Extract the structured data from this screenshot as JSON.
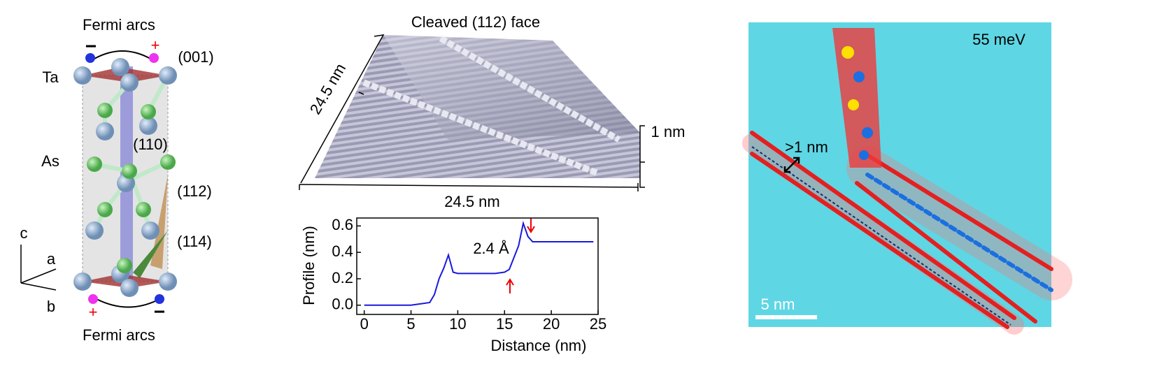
{
  "panel_a": {
    "top_label": "Fermi arcs",
    "bottom_label": "Fermi arcs",
    "planes": [
      "(001)",
      "(110)",
      "(112)",
      "(114)"
    ],
    "atoms": [
      "Ta",
      "As"
    ],
    "axes": [
      "c",
      "a",
      "b"
    ],
    "signs": [
      "−",
      "+",
      "+",
      "−"
    ]
  },
  "panel_b": {
    "title": "Cleaved (112) face",
    "side_label": "24.5 nm",
    "front_label": "24.5 nm",
    "height_label": "1 nm"
  },
  "chart_data": {
    "type": "line",
    "x": [
      0,
      1,
      2,
      3,
      4,
      5,
      6,
      7,
      7.5,
      8,
      8.5,
      9,
      9.5,
      10,
      11,
      12,
      13,
      14,
      15,
      15.5,
      16,
      16.5,
      17,
      17.5,
      18,
      19,
      20,
      21,
      22,
      23,
      24,
      24.5
    ],
    "series": [
      {
        "name": "Profile",
        "color": "#1a1adc",
        "values": [
          0,
          0,
          0,
          0,
          0,
          0,
          0.01,
          0.02,
          0.08,
          0.2,
          0.28,
          0.38,
          0.25,
          0.24,
          0.24,
          0.24,
          0.24,
          0.24,
          0.25,
          0.27,
          0.36,
          0.45,
          0.62,
          0.52,
          0.48,
          0.48,
          0.48,
          0.48,
          0.48,
          0.48,
          0.48,
          0.48
        ]
      }
    ],
    "xlim": [
      -0.8,
      25
    ],
    "ylim": [
      -0.07,
      0.66
    ],
    "xticks": [
      0,
      5,
      10,
      15,
      20,
      25
    ],
    "yticks": [
      {
        "value": 0,
        "label": "0.0"
      },
      0.2,
      0.4,
      0.6
    ],
    "x_label": "Distance (nm)",
    "y_label": "Profile (nm)",
    "annotation": "2.4 Å"
  },
  "panel_c": {
    "energy": "55 meV",
    "width": ">1 nm",
    "scale": "5 nm"
  }
}
